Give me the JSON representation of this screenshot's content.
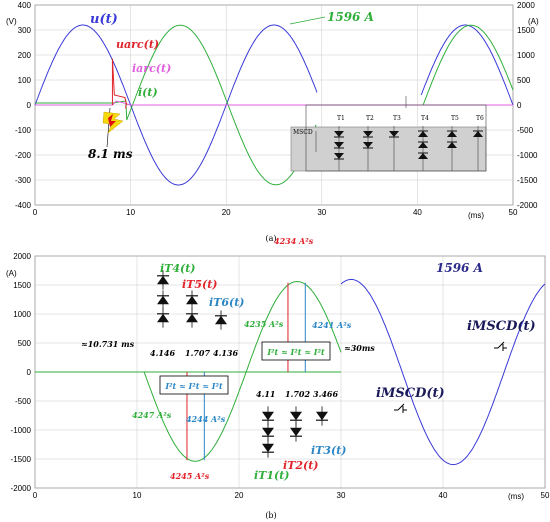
{
  "chart_data": [
    {
      "id": "a",
      "type": "line",
      "caption": "(a)",
      "xlabel": "(ms)",
      "ylabel_left": "(V)",
      "ylabel_right": "(A)",
      "xlim": [
        0,
        50
      ],
      "ylim_left": [
        -400,
        400
      ],
      "ylim_right": [
        -2000,
        2000
      ],
      "x_ticks": [
        "0",
        "10",
        "20",
        "30",
        "40",
        "50"
      ],
      "y_ticks_left": [
        "400",
        "300",
        "200",
        "100",
        "0",
        "-100",
        "-200",
        "-300",
        "-400"
      ],
      "y_ticks_right": [
        "2000",
        "1500",
        "1000",
        "500",
        "0",
        "-500",
        "-1000",
        "-1500",
        "-2000"
      ],
      "series": [
        {
          "name": "u(t)",
          "color": "#3a3ad8"
        },
        {
          "name": "uarc(t)",
          "color": "#e0242a"
        },
        {
          "name": "iarc(t)",
          "color": "#e060e0"
        },
        {
          "name": "i(t)",
          "color": "#2fae3a"
        }
      ],
      "annotations": {
        "u_label": "u(t)",
        "i_label": "i(t)",
        "uarc_label": "uarc(t)",
        "iarc_label": "iarc(t)",
        "current_peak": "1596 A",
        "fault_time": "8.1 ms"
      },
      "circuit": {
        "labels": [
          "T1",
          "T2",
          "T3",
          "T4",
          "T5",
          "T6"
        ],
        "mscd_label": "MSCD"
      }
    },
    {
      "id": "b",
      "type": "line",
      "caption": "(b)",
      "xlabel": "(ms)",
      "ylabel": "(A)",
      "xlim": [
        0,
        50
      ],
      "ylim": [
        -2000,
        2000
      ],
      "x_ticks": [
        "0",
        "10",
        "20",
        "30",
        "40",
        "50"
      ],
      "y_ticks": [
        "2000",
        "1500",
        "1000",
        "500",
        "0",
        "-500",
        "-1000",
        "-1500",
        "-2000"
      ],
      "series": [
        {
          "name": "iMSCD(t)",
          "color": "#3a3ad8"
        },
        {
          "name": "iT4(t)",
          "color": "#2fae3a"
        },
        {
          "name": "iT5(t)",
          "color": "#e0242a"
        },
        {
          "name": "iT6(t)",
          "color": "#2b86c5"
        },
        {
          "name": "iT1(t)",
          "color": "#2fae3a"
        },
        {
          "name": "iT2(t)",
          "color": "#e0242a"
        },
        {
          "name": "iT3(t)",
          "color": "#2b86c5"
        }
      ],
      "annotations": {
        "peak": "1596 A",
        "mscd_upper": "iMSCD(t)",
        "mscd_lower": "iMSCD(t)",
        "t_start": "≈10.731 ms",
        "t_30": "≈30ms",
        "dur_top": [
          "4.146",
          "1.707",
          "4.136"
        ],
        "dur_bottom": [
          "4.11",
          "1.702",
          "3.466"
        ],
        "i2t_4234": "4234 A²s",
        "i2t_4235": "4235 A²s",
        "i2t_4241": "4241 A²s",
        "i2t_4247": "4247 A²s",
        "i2t_4244": "4244 A²s",
        "i2t_4245": "4245 A²s",
        "eq": "I²t ≈ I²t ≈ I²t"
      }
    }
  ]
}
